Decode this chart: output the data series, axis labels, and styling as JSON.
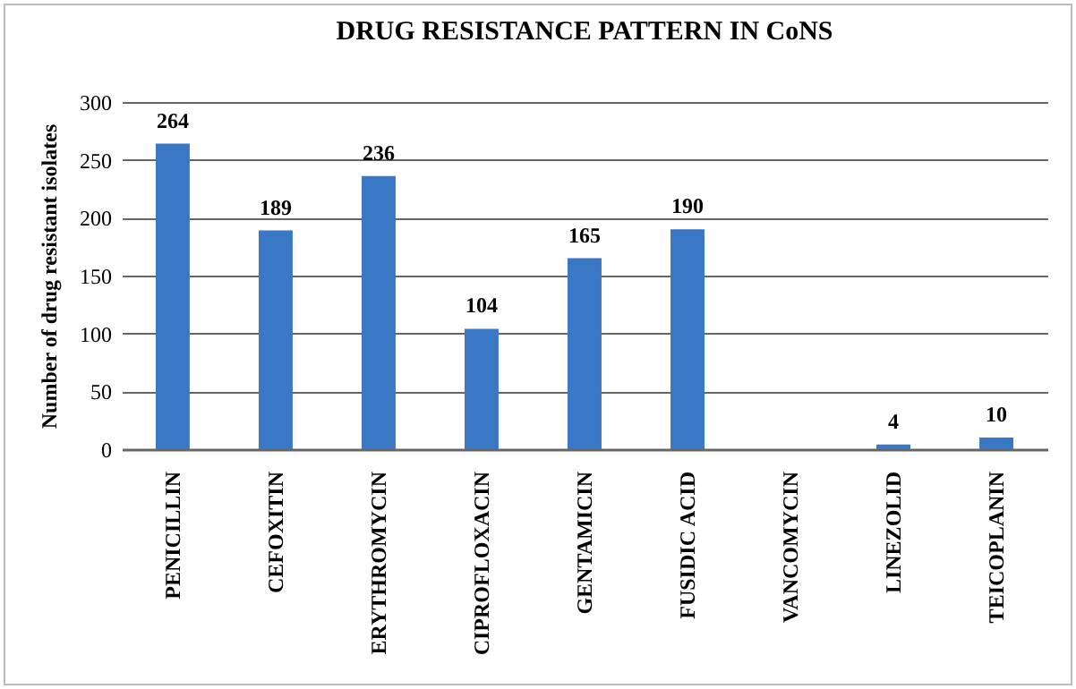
{
  "chart_data": {
    "type": "bar",
    "title": "DRUG RESISTANCE PATTERN IN CoNS",
    "ylabel": "Number  of  drug resistant  isolates",
    "categories": [
      "PENICILLIN",
      "CEFOXITIN",
      "ERYTHROMYCIN",
      "CIPROFLOXACIN",
      "GENTAMICIN",
      "FUSIDIC ACID",
      "VANCOMYCIN",
      "LINEZOLID",
      "TEICOPLANIN"
    ],
    "values": [
      264,
      189,
      236,
      104,
      165,
      190,
      0,
      4,
      10
    ],
    "value_labels": [
      "264",
      "189",
      "236",
      "104",
      "165",
      "190",
      null,
      "4",
      "10"
    ],
    "color": "#3a78c6",
    "ylim": [
      0,
      300
    ],
    "yticks": [
      0,
      50,
      100,
      150,
      200,
      250,
      300
    ],
    "grid": "y"
  }
}
